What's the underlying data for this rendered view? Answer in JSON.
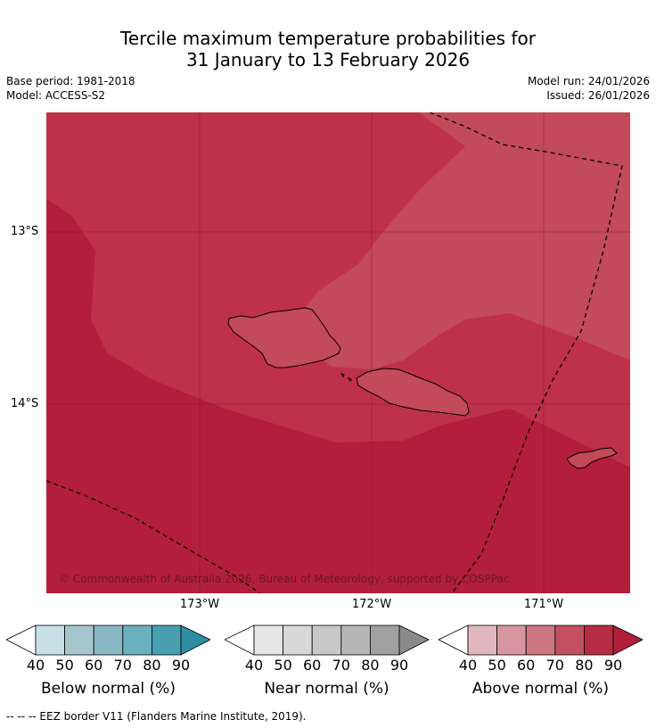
{
  "title": {
    "line1": "Tercile maximum temperature probabilities for",
    "line2": "31 January to 13 February 2026"
  },
  "meta": {
    "base_period": "Base period: 1981-2018",
    "model": "Model: ACCESS-S2",
    "model_run": "Model run: 24/01/2026",
    "issued": "Issued: 26/01/2026"
  },
  "map": {
    "lat_labels": [
      "13°S",
      "14°S"
    ],
    "lon_labels": [
      "173°W",
      "172°W",
      "171°W"
    ],
    "copyright": "© Commonwealth of Australia 2026, Bureau of Meteorology, supported by COSPPac",
    "colors": {
      "above_80_90": "#b31e3b",
      "above_70_80": "#be3148",
      "above_60_70": "#c24a59",
      "land_outline": "#000000"
    }
  },
  "legends": [
    {
      "label": "Below normal (%)",
      "ticks": [
        "40",
        "50",
        "60",
        "70",
        "80",
        "90"
      ],
      "colors": [
        "#ffffff",
        "#c6e0e6",
        "#a5c6cd",
        "#89b8c4",
        "#6ab0bf",
        "#489faf",
        "#2d8ea3"
      ]
    },
    {
      "label": "Near normal (%)",
      "ticks": [
        "40",
        "50",
        "60",
        "70",
        "80",
        "90"
      ],
      "colors": [
        "#ffffff",
        "#e6e6e6",
        "#d8d8d8",
        "#c8c8c8",
        "#b6b6b6",
        "#a0a0a0",
        "#8a8a8a"
      ]
    },
    {
      "label": "Above normal (%)",
      "ticks": [
        "40",
        "50",
        "60",
        "70",
        "80",
        "90"
      ],
      "colors": [
        "#ffffff",
        "#e2b6bd",
        "#d7959f",
        "#cd7581",
        "#c2505e",
        "#b62c43",
        "#b01e3a"
      ]
    }
  ],
  "footer": "--  --  -- EEZ border V11 (Flanders Marine Institute, 2019)."
}
